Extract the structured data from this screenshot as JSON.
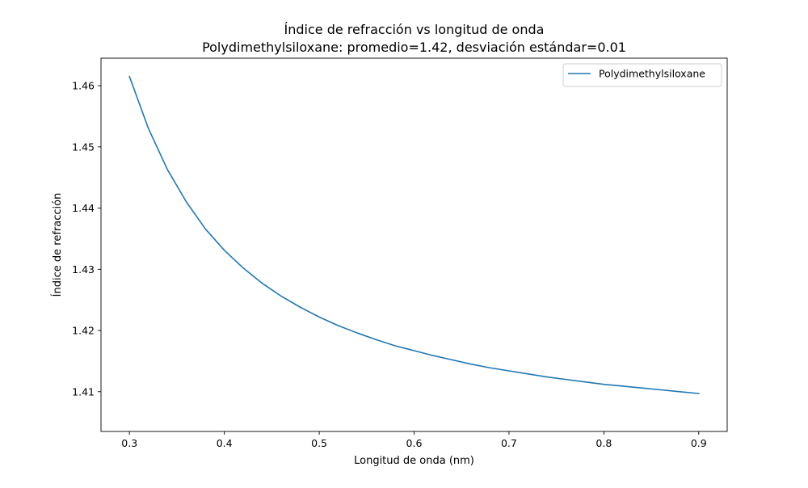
{
  "chart_data": {
    "type": "line",
    "title": "Índice de refracción vs longitud de onda",
    "subtitle": "Polydimethylsiloxane: promedio=1.42, desviación estándar=0.01",
    "xlabel": "Longitud de onda (nm)",
    "ylabel": "Índice de refracción",
    "xlim": [
      0.27,
      0.93
    ],
    "ylim": [
      1.4035,
      1.4645
    ],
    "xticks": [
      "0.3",
      "0.4",
      "0.5",
      "0.6",
      "0.7",
      "0.8",
      "0.9"
    ],
    "yticks": [
      "1.41",
      "1.42",
      "1.43",
      "1.44",
      "1.45",
      "1.46"
    ],
    "grid": false,
    "legend_position": "top-right",
    "series": [
      {
        "name": "Polydimethylsiloxane",
        "color": "#1f77b4",
        "x": [
          0.3,
          0.32,
          0.34,
          0.36,
          0.38,
          0.4,
          0.42,
          0.44,
          0.46,
          0.48,
          0.5,
          0.52,
          0.54,
          0.56,
          0.58,
          0.6,
          0.62,
          0.64,
          0.66,
          0.68,
          0.7,
          0.72,
          0.74,
          0.76,
          0.78,
          0.8,
          0.82,
          0.84,
          0.86,
          0.88,
          0.9
        ],
        "y": [
          1.4615,
          1.453,
          1.4463,
          1.441,
          1.4366,
          1.4331,
          1.4302,
          1.4277,
          1.4256,
          1.4238,
          1.4222,
          1.4208,
          1.4196,
          1.4185,
          1.4175,
          1.4167,
          1.4159,
          1.4152,
          1.4145,
          1.4139,
          1.4134,
          1.4129,
          1.4124,
          1.412,
          1.4116,
          1.4112,
          1.4109,
          1.4106,
          1.4103,
          1.41,
          1.4097
        ]
      }
    ]
  }
}
